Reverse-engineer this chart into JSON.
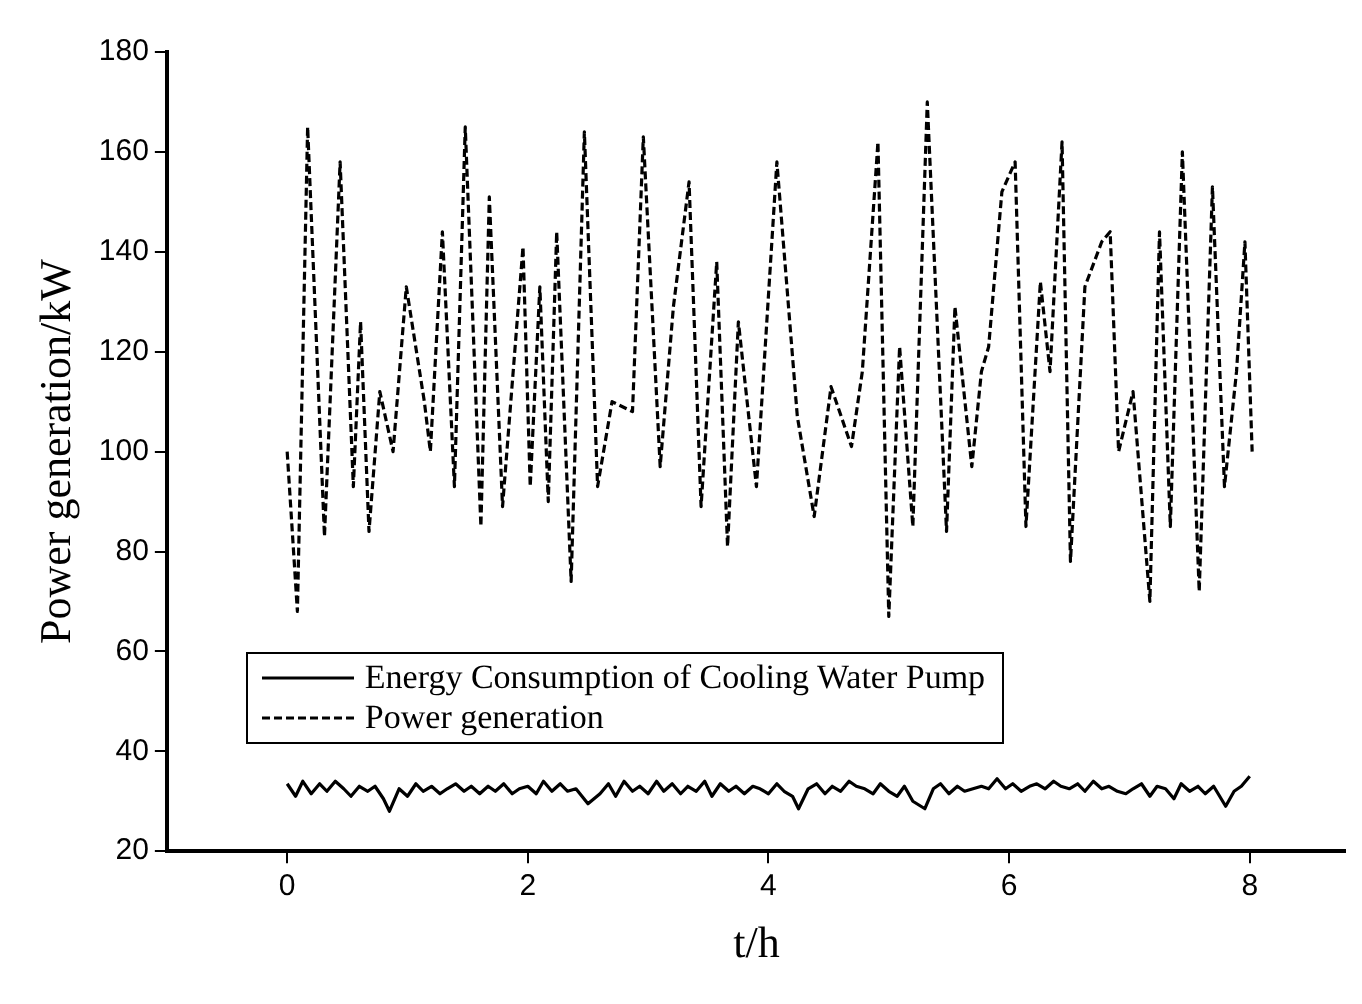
{
  "chart_data": {
    "type": "line",
    "xlabel": "t/h",
    "ylabel": "Power generation/kW",
    "xlim": [
      -1,
      8.8
    ],
    "ylim": [
      20,
      180
    ],
    "xticks": [
      0,
      2,
      4,
      6,
      8
    ],
    "yticks": [
      20,
      40,
      60,
      80,
      100,
      120,
      140,
      160,
      180
    ],
    "grid": false,
    "legend": "bottom left",
    "marker": "none",
    "series": [
      {
        "name": "Energy Consumption of Cooling Water Pump",
        "color": "#000000",
        "line_style": "solid",
        "x": [
          0,
          0.07,
          0.13,
          0.2,
          0.27,
          0.33,
          0.4,
          0.47,
          0.53,
          0.6,
          0.67,
          0.73,
          0.8,
          0.85,
          0.93,
          1,
          1.07,
          1.13,
          1.2,
          1.27,
          1.33,
          1.4,
          1.47,
          1.53,
          1.6,
          1.67,
          1.73,
          1.8,
          1.87,
          1.93,
          2,
          2.07,
          2.13,
          2.2,
          2.27,
          2.33,
          2.4,
          2.5,
          2.6,
          2.67,
          2.73,
          2.8,
          2.87,
          2.93,
          3,
          3.07,
          3.13,
          3.2,
          3.27,
          3.33,
          3.4,
          3.47,
          3.53,
          3.6,
          3.67,
          3.73,
          3.8,
          3.87,
          3.93,
          4,
          4.07,
          4.13,
          4.2,
          4.25,
          4.33,
          4.4,
          4.47,
          4.53,
          4.6,
          4.67,
          4.73,
          4.8,
          4.87,
          4.93,
          5,
          5.07,
          5.13,
          5.2,
          5.3,
          5.37,
          5.43,
          5.5,
          5.57,
          5.63,
          5.7,
          5.77,
          5.83,
          5.9,
          5.97,
          6.03,
          6.1,
          6.17,
          6.23,
          6.3,
          6.37,
          6.43,
          6.5,
          6.57,
          6.63,
          6.7,
          6.77,
          6.83,
          6.9,
          6.97,
          7.03,
          7.1,
          7.17,
          7.23,
          7.3,
          7.37,
          7.43,
          7.5,
          7.57,
          7.63,
          7.7,
          7.8,
          7.87,
          7.93,
          8
        ],
        "values": [
          33.5,
          31,
          34,
          31.5,
          33.5,
          32,
          34,
          32.5,
          31,
          33,
          32,
          33,
          30.5,
          28,
          32.5,
          31,
          33.5,
          32,
          33,
          31.5,
          32.5,
          33.5,
          32,
          33,
          31.5,
          33,
          32,
          33.5,
          31.5,
          32.5,
          33,
          31.5,
          34,
          32,
          33.5,
          32,
          32.5,
          29.5,
          31.5,
          33.5,
          31,
          34,
          32,
          33,
          31.5,
          34,
          32,
          33.5,
          31.5,
          33,
          32,
          34,
          31,
          33.5,
          32,
          33,
          31.5,
          33,
          32.5,
          31.5,
          33.5,
          32,
          31,
          28.5,
          32.5,
          33.5,
          31.5,
          33,
          32,
          34,
          33,
          32.5,
          31.5,
          33.5,
          32,
          31,
          33,
          30,
          28.5,
          32.5,
          33.5,
          31.5,
          33,
          32,
          32.5,
          33,
          32.5,
          34.5,
          32.5,
          33.5,
          32,
          33,
          33.5,
          32.5,
          34,
          33,
          32.5,
          33.5,
          32,
          34,
          32.5,
          33,
          32,
          31.5,
          32.5,
          33.5,
          31,
          33,
          32.5,
          30.5,
          33.5,
          32,
          33,
          31.5,
          33,
          29,
          32,
          33,
          35
        ]
      },
      {
        "name": "Power generation",
        "color": "#000000",
        "line_style": "dashed",
        "x": [
          0,
          0.085,
          0.17,
          0.31,
          0.44,
          0.55,
          0.61,
          0.68,
          0.77,
          0.88,
          0.99,
          1.14,
          1.19,
          1.29,
          1.39,
          1.48,
          1.61,
          1.68,
          1.79,
          1.96,
          2.02,
          2.1,
          2.17,
          2.24,
          2.36,
          2.47,
          2.58,
          2.7,
          2.87,
          2.96,
          3.1,
          3.21,
          3.34,
          3.44,
          3.57,
          3.66,
          3.75,
          3.9,
          4.07,
          4.24,
          4.38,
          4.52,
          4.69,
          4.78,
          4.91,
          5,
          5.09,
          5.2,
          5.32,
          5.48,
          5.55,
          5.69,
          5.77,
          5.83,
          5.94,
          6.05,
          6.14,
          6.26,
          6.34,
          6.44,
          6.51,
          6.63,
          6.77,
          6.84,
          6.91,
          7.03,
          7.17,
          7.25,
          7.34,
          7.44,
          7.58,
          7.69,
          7.79,
          7.89,
          7.96,
          8.02
        ],
        "values": [
          100,
          68,
          165,
          83,
          158,
          93,
          126,
          84,
          112,
          100,
          133,
          110,
          100,
          144,
          93,
          165,
          85,
          151,
          89,
          141,
          93,
          133,
          90,
          144,
          74,
          164,
          93,
          110,
          108,
          163,
          97,
          129,
          154,
          89,
          138,
          81,
          126,
          93,
          158,
          107,
          87,
          113,
          101,
          116,
          162,
          67,
          121,
          85,
          170,
          84,
          129,
          97,
          116,
          121,
          152,
          158,
          85,
          134,
          116,
          162,
          78,
          133,
          142,
          144,
          100,
          112,
          70,
          144,
          85,
          160,
          72,
          153,
          93,
          116,
          142,
          100
        ]
      }
    ]
  }
}
